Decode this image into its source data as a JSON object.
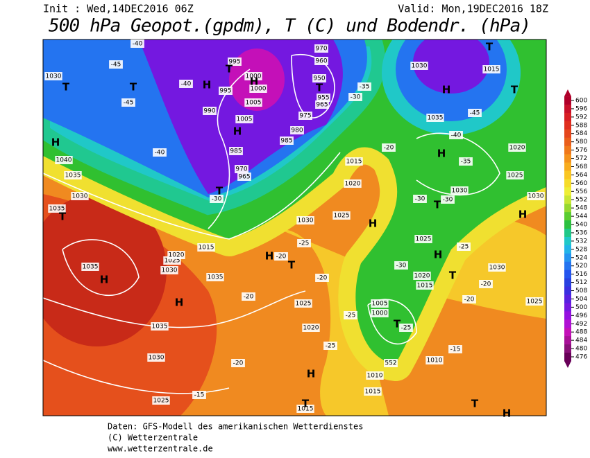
{
  "header": {
    "init": "Init : Wed,14DEC2016 06Z",
    "valid": "Valid: Mon,19DEC2016 18Z",
    "title": "500 hPa Geopot.(gpdm), T (C) und Bodendr. (hPa)"
  },
  "map": {
    "labels": [
      "-40",
      "-45",
      "1030",
      "T",
      "T",
      "H",
      "-40",
      "-45",
      "995",
      "T",
      "1000",
      "1000",
      "H",
      "995",
      "1005",
      "990",
      "1005",
      "H",
      "970",
      "960",
      "950",
      "T",
      "955",
      "965",
      "975",
      "980",
      "985",
      "-35",
      "-30",
      "1030",
      "1015",
      "T",
      "H",
      "T",
      "1035",
      "-40",
      "-45",
      "H",
      "1020",
      "-35",
      "H",
      "1040",
      "-40",
      "1035",
      "1030",
      "965",
      "970",
      "985",
      "T",
      "-30",
      "1035",
      "T",
      "1015",
      "1020",
      "-20",
      "1025",
      "H",
      "1030",
      "-25",
      "1030",
      "T",
      "-30",
      "-30",
      "1025",
      "1030",
      "H",
      "-25",
      "H",
      "1025",
      "-30",
      "1020",
      "1015",
      "T",
      "1030",
      "1025",
      "H",
      "1035",
      "1025",
      "1030",
      "1020",
      "1015",
      "H",
      "1035",
      "-20",
      "H",
      "-20",
      "T",
      "-20",
      "1025",
      "1020",
      "-25",
      "-25",
      "1005",
      "1000",
      "T",
      "-25",
      "552",
      "1010",
      "-15",
      "-20",
      "1035",
      "1030",
      "-20",
      "H",
      "1010",
      "1015",
      "1025",
      "-15",
      "1015",
      "T",
      "T",
      "H",
      "-20"
    ]
  },
  "colorbar": {
    "levels": [
      600,
      596,
      592,
      588,
      584,
      580,
      576,
      572,
      568,
      564,
      560,
      556,
      552,
      548,
      544,
      540,
      536,
      532,
      528,
      524,
      520,
      516,
      512,
      508,
      504,
      500,
      496,
      492,
      488,
      484,
      480,
      476
    ],
    "colors": [
      "#b0002a",
      "#c8102a",
      "#d81e24",
      "#e02e1e",
      "#e5461c",
      "#ea5e1a",
      "#f0781a",
      "#f4921c",
      "#f8ac1e",
      "#fac622",
      "#f6dc2a",
      "#eeee36",
      "#c8e634",
      "#96d830",
      "#5acc30",
      "#2cc040",
      "#20c888",
      "#20c8c8",
      "#22b4e8",
      "#2494f0",
      "#2474f0",
      "#2454ee",
      "#2840e0",
      "#3a2ee0",
      "#5820e0",
      "#7418e0",
      "#9410e0",
      "#b010d4",
      "#c410b8",
      "#a81098",
      "#881078",
      "#680058"
    ]
  },
  "footer": {
    "line1": "Daten: GFS-Modell des amerikanischen Wetterdienstes",
    "line2": "(C) Wetterzentrale",
    "line3": "www.wetterzentrale.de"
  }
}
